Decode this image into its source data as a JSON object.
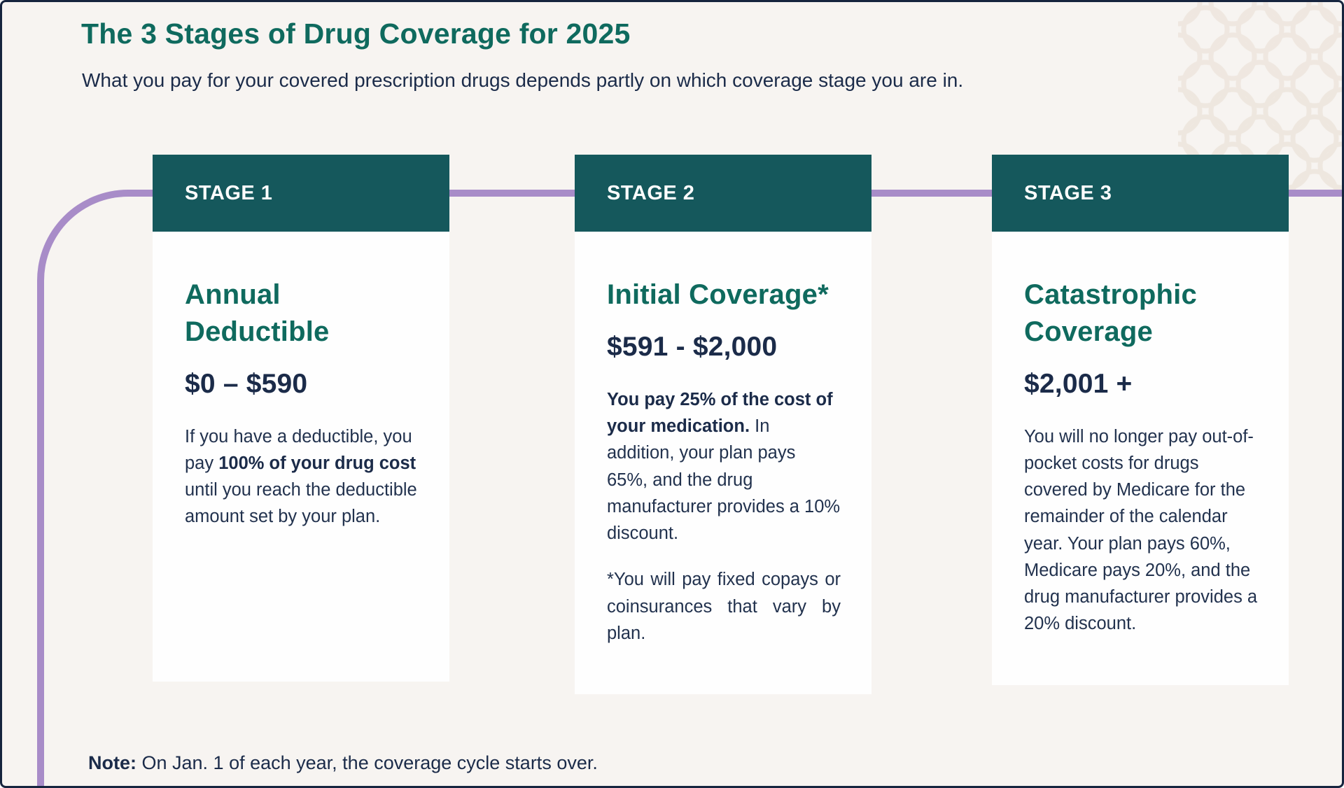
{
  "page": {
    "title": "The 3 Stages of Drug Coverage for 2025",
    "subtitle": "What you pay for your covered prescription drugs depends partly on which coverage stage you are in.",
    "note_label": "Note:",
    "note_text": " On Jan. 1 of each year, the coverage cycle starts over."
  },
  "colors": {
    "background": "#F7F4F1",
    "header_teal": "#15585C",
    "title_teal": "#0F6A5E",
    "navy": "#1B2B49",
    "body_text": "#22324E",
    "connector_purple": "#A88CC8",
    "card_background": "#FEFEFE",
    "frame_border": "#16243E",
    "pattern_beige": "#ECE3DA"
  },
  "stages": [
    {
      "badge": "STAGE 1",
      "title": "Annual Deductible",
      "range": "$0 – $590",
      "paragraphs": [
        {
          "align": "left",
          "segments": [
            {
              "text": "If you have a deductible, you pay ",
              "bold": false
            },
            {
              "text": "100% of your drug cost",
              "bold": true
            },
            {
              "text": " until you reach the deductible amount set by your plan.",
              "bold": false
            }
          ]
        }
      ]
    },
    {
      "badge": "STAGE 2",
      "title": "Initial Coverage*",
      "range": "$591 - $2,000",
      "paragraphs": [
        {
          "align": "left",
          "segments": [
            {
              "text": "You pay 25% of the cost of your medication.",
              "bold": true
            },
            {
              "text": " In addition, your plan pays 65%, and the drug manufacturer provides a 10% discount.",
              "bold": false
            }
          ]
        },
        {
          "align": "justify",
          "segments": [
            {
              "text": "*You will pay fixed copays or coinsurances that vary by plan.",
              "bold": false
            }
          ]
        }
      ]
    },
    {
      "badge": "STAGE 3",
      "title": "Catastrophic Coverage",
      "range": "$2,001 +",
      "paragraphs": [
        {
          "align": "left",
          "segments": [
            {
              "text": "You will no longer pay out-of-pocket costs for drugs covered by Medicare for the remainder of the calendar year. Your plan pays 60%, Medicare pays 20%, and the drug manufacturer provides a 20% discount.",
              "bold": false
            }
          ]
        }
      ]
    }
  ]
}
